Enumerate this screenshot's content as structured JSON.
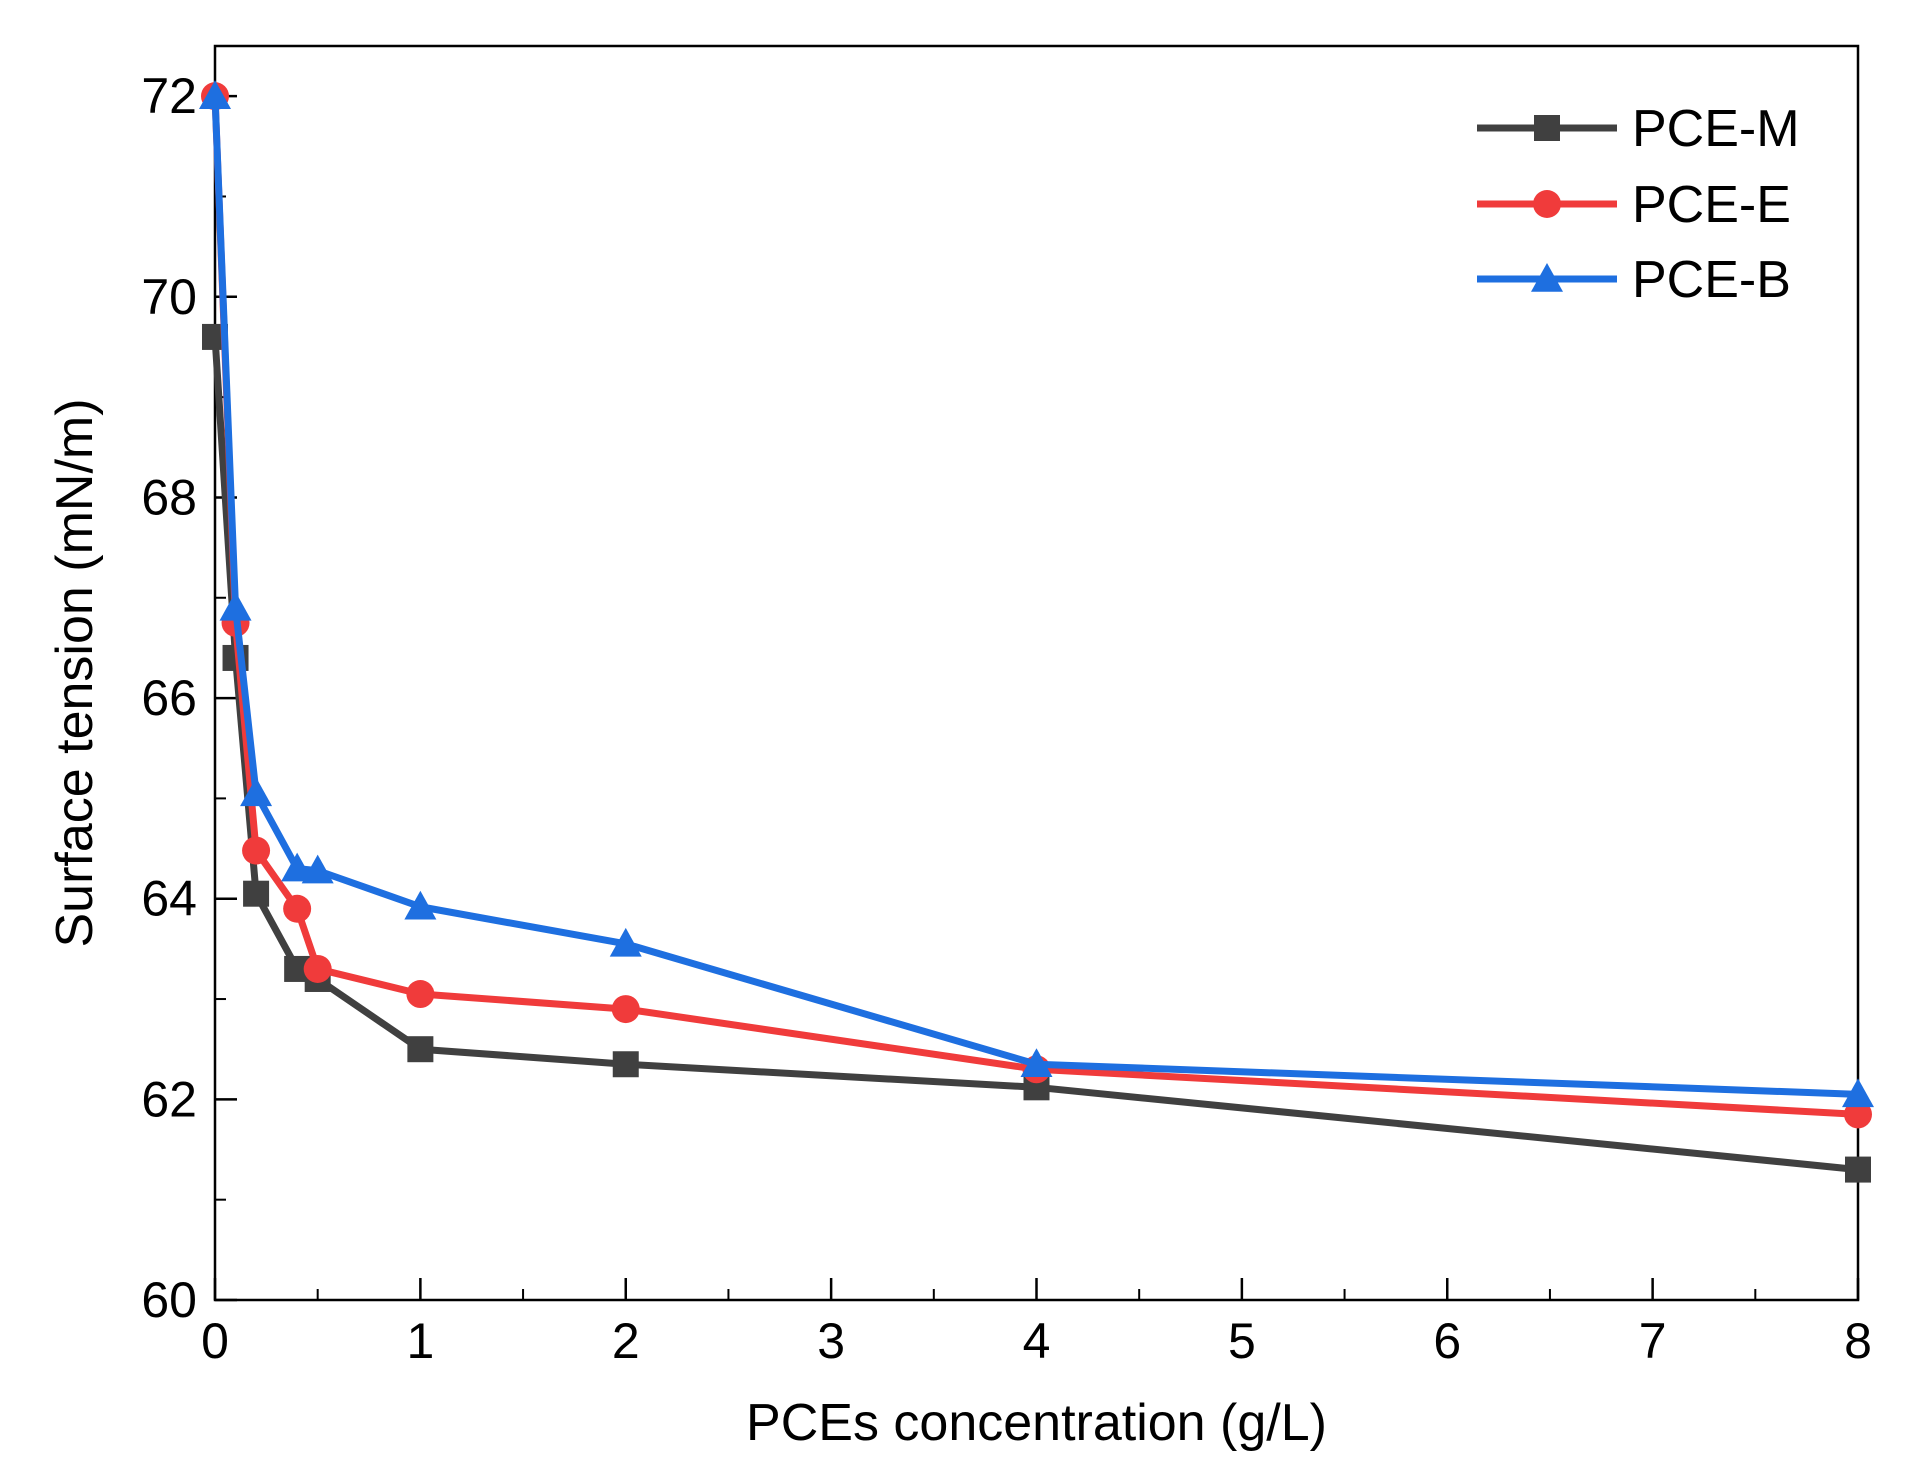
{
  "chart_data": {
    "type": "line",
    "title": "",
    "xlabel": "PCEs concentration (g/L)",
    "ylabel": "Surface tension (mN/m)",
    "xlim": [
      0,
      8
    ],
    "ylim": [
      60,
      72.5
    ],
    "xticks": [
      "0",
      "1",
      "2",
      "3",
      "4",
      "5",
      "6",
      "7",
      "8"
    ],
    "yticks": [
      "60",
      "62",
      "64",
      "66",
      "68",
      "70",
      "72"
    ],
    "grid": false,
    "legend_position": "top-right",
    "series": [
      {
        "name": "PCE-M",
        "color": "#404040",
        "marker": "square",
        "x": [
          0,
          0.1,
          0.2,
          0.4,
          0.5,
          1,
          2,
          4,
          8
        ],
        "y": [
          69.6,
          66.4,
          64.05,
          63.3,
          63.2,
          62.5,
          62.35,
          62.12,
          61.3
        ]
      },
      {
        "name": "PCE-E",
        "color": "#f03b3b",
        "marker": "circle",
        "x": [
          0,
          0.1,
          0.2,
          0.4,
          0.5,
          1,
          2,
          4,
          8
        ],
        "y": [
          72.0,
          66.75,
          64.48,
          63.9,
          63.3,
          63.05,
          62.9,
          62.3,
          61.85
        ]
      },
      {
        "name": "PCE-B",
        "color": "#1e6fe0",
        "marker": "triangle",
        "x": [
          0,
          0.1,
          0.2,
          0.4,
          0.5,
          1,
          2,
          4,
          8
        ],
        "y": [
          72.0,
          66.9,
          65.05,
          64.3,
          64.28,
          63.92,
          63.55,
          62.35,
          62.05
        ]
      }
    ]
  }
}
